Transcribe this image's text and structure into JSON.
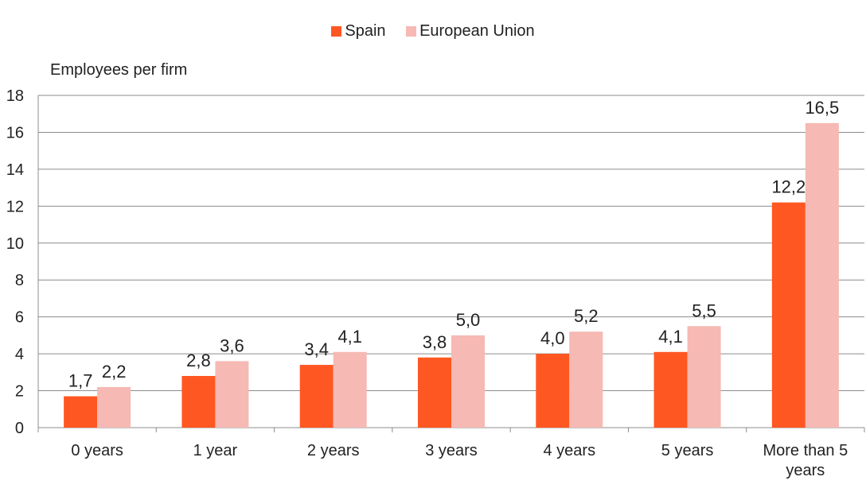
{
  "chart_data": {
    "type": "bar",
    "ylabel": "Employees per firm",
    "xlabel": "",
    "ylim": [
      0,
      18
    ],
    "yticks": [
      0,
      2,
      4,
      6,
      8,
      10,
      12,
      14,
      16,
      18
    ],
    "grid": true,
    "legend_position": "top-center",
    "categories": [
      "0 years",
      "1 year",
      "2 years",
      "3 years",
      "4 years",
      "5 years",
      "More than 5 years"
    ],
    "category_lines": [
      [
        "0 years"
      ],
      [
        "1 year"
      ],
      [
        "2 years"
      ],
      [
        "3 years"
      ],
      [
        "4 years"
      ],
      [
        "5 years"
      ],
      [
        "More than 5",
        "years"
      ]
    ],
    "series": [
      {
        "name": "Spain",
        "color": "#ff5722",
        "values": [
          1.7,
          2.8,
          3.4,
          3.8,
          4.0,
          4.1,
          12.2
        ],
        "labels": [
          "1,7",
          "2,8",
          "3,4",
          "3,8",
          "4,0",
          "4,1",
          "12,2"
        ]
      },
      {
        "name": "European Union",
        "color": "#f6b9b4",
        "values": [
          2.2,
          3.6,
          4.1,
          5.0,
          5.2,
          5.5,
          16.5
        ],
        "labels": [
          "2,2",
          "3,6",
          "4,1",
          "5,0",
          "5,2",
          "5,5",
          "16,5"
        ]
      }
    ]
  }
}
